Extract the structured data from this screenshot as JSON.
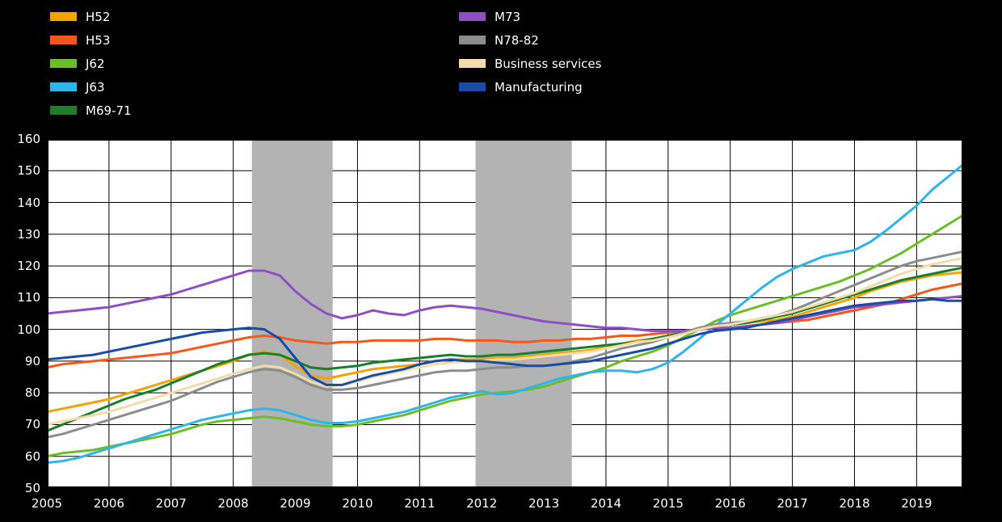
{
  "chart_data": {
    "type": "line",
    "title": "",
    "xlabel": "",
    "ylabel": "",
    "x_start": 2005,
    "x_step": 0.25,
    "x_domain": [
      2005,
      2019.75
    ],
    "ylim": [
      50,
      160
    ],
    "yticks": [
      50,
      60,
      70,
      80,
      90,
      100,
      110,
      120,
      130,
      140,
      150,
      160
    ],
    "xticks": [
      2005,
      2006,
      2007,
      2008,
      2009,
      2010,
      2011,
      2012,
      2013,
      2014,
      2015,
      2016,
      2017,
      2018,
      2019
    ],
    "grid": true,
    "legend_position": "top",
    "legend_split": 5,
    "page_bg": "#000000",
    "plot_bg": "#ffffff",
    "grid_color": "#000000",
    "band_color": "#b3b3b3",
    "bands": [
      [
        2008.3,
        2009.6
      ],
      [
        2011.9,
        2013.45
      ]
    ],
    "series": [
      {
        "name": "H52",
        "color": "#f4a300",
        "values": [
          74,
          75,
          76,
          77,
          78,
          79.5,
          81,
          82.5,
          84,
          85.5,
          87,
          88.5,
          90,
          92,
          93,
          92,
          88.5,
          85.5,
          84.5,
          85.5,
          86.5,
          87.5,
          88,
          88.5,
          89,
          90,
          90.5,
          90.5,
          90.5,
          91,
          91,
          91.5,
          92,
          92.5,
          93,
          93.5,
          94.5,
          95.5,
          96.5,
          97,
          98,
          99,
          100.5,
          101.5,
          101.5,
          102,
          102.5,
          103,
          104,
          105.5,
          107,
          108.5,
          110,
          112,
          113.5,
          115,
          116,
          117,
          117.5,
          118
        ]
      },
      {
        "name": "H53",
        "color": "#f4591c",
        "values": [
          88,
          89,
          89.5,
          90,
          90.5,
          91,
          91.5,
          92,
          92.5,
          93.5,
          94.5,
          95.5,
          96.5,
          97.5,
          98,
          97.5,
          96.5,
          96,
          95.5,
          96,
          96,
          96.5,
          96.5,
          96.5,
          96.5,
          97,
          97,
          96.5,
          96.5,
          96.5,
          96,
          96,
          96.5,
          96.5,
          97,
          97,
          97.5,
          98,
          98,
          98.5,
          99,
          99.5,
          100,
          100.5,
          100.5,
          101,
          101.5,
          102,
          102.5,
          103,
          104,
          105,
          106,
          107,
          108,
          109.5,
          111,
          112.5,
          113.5,
          114.5
        ]
      },
      {
        "name": "J62",
        "color": "#6cbe28",
        "values": [
          60,
          61,
          61.5,
          62,
          63,
          64,
          65,
          66,
          67,
          68.5,
          70,
          71,
          71.5,
          72,
          72.5,
          72,
          71,
          70,
          69.5,
          69.5,
          70,
          71,
          72,
          73,
          74.5,
          76,
          77.5,
          78.5,
          79.5,
          80,
          80.5,
          81,
          82,
          83.5,
          85,
          86.5,
          88,
          90,
          91.5,
          93,
          95,
          97.5,
          100,
          102.5,
          104.5,
          106,
          107.5,
          109,
          110.5,
          112,
          113.5,
          115,
          117,
          119,
          121.5,
          124,
          127,
          130,
          133,
          136
        ]
      },
      {
        "name": "J63",
        "color": "#2fb5e9",
        "values": [
          58,
          58.5,
          59.5,
          61,
          62.5,
          64,
          65.5,
          67,
          68.5,
          70,
          71.5,
          72.5,
          73.5,
          74.5,
          75,
          74.5,
          73,
          71.5,
          70.5,
          70.5,
          71,
          72,
          73,
          74,
          75.5,
          77,
          78.5,
          79.5,
          80.5,
          79.5,
          80,
          81.5,
          83,
          84.5,
          85.5,
          86.5,
          87,
          87,
          86.5,
          87.5,
          89.5,
          93,
          97,
          101,
          105,
          109,
          113,
          116.5,
          119,
          121,
          123,
          124,
          125,
          127.5,
          131,
          135,
          139,
          144,
          148,
          152
        ]
      },
      {
        "name": "M69-71",
        "color": "#1b7e2c",
        "values": [
          68,
          70,
          72,
          74,
          76,
          78,
          79.5,
          81,
          83,
          85,
          87,
          89,
          90.5,
          92,
          92.5,
          92,
          90,
          88,
          87.5,
          88,
          88.5,
          89.5,
          90,
          90.5,
          91,
          91.5,
          92,
          91.5,
          91.5,
          92,
          92,
          92.5,
          93,
          93.5,
          94,
          94.5,
          95,
          95.5,
          96,
          97,
          98,
          99,
          100,
          101,
          101.5,
          102,
          103,
          104,
          105,
          106.5,
          108,
          109.5,
          111,
          112.5,
          114,
          115.5,
          116.5,
          117.5,
          118.5,
          119.5
        ]
      },
      {
        "name": "M73",
        "color": "#8e4fc4",
        "values": [
          105,
          105.5,
          106,
          106.5,
          107,
          108,
          109,
          110,
          111,
          112.5,
          114,
          115.5,
          117,
          118.5,
          118.5,
          117,
          112,
          108,
          105,
          103.5,
          104.5,
          106,
          105,
          104.5,
          106,
          107,
          107.5,
          107,
          106.5,
          105.5,
          104.5,
          103.5,
          102.5,
          102,
          101.5,
          101,
          100.5,
          100.5,
          100,
          99.5,
          99.5,
          99.5,
          100,
          100.5,
          100.5,
          101,
          101.5,
          102,
          103,
          104,
          105,
          106,
          107,
          107.5,
          108,
          108.5,
          109,
          109.5,
          110,
          110.5
        ]
      },
      {
        "name": "N78-82",
        "color": "#8c8c8c",
        "values": [
          66,
          67,
          68.5,
          70,
          71.5,
          73,
          74.5,
          76,
          77.5,
          79.5,
          81.5,
          83.5,
          85,
          86.5,
          87.5,
          87,
          85,
          82.5,
          81,
          81,
          81.5,
          82.5,
          83.5,
          84.5,
          85.5,
          86.5,
          87,
          87,
          87.5,
          88,
          88,
          88.5,
          88.5,
          89,
          90,
          91,
          92.5,
          94,
          95,
          96,
          97.5,
          99,
          100.5,
          101.5,
          102,
          102.5,
          103.5,
          104.5,
          106,
          108,
          110,
          112,
          114,
          116,
          118,
          120,
          121.5,
          122.5,
          123.5,
          124.5
        ]
      },
      {
        "name": "Business services",
        "color": "#f3dcab",
        "values": [
          70,
          71,
          72,
          73,
          74,
          75.5,
          77,
          78.5,
          80,
          81.5,
          83,
          84.5,
          86,
          87.5,
          88.5,
          88,
          86,
          83.5,
          82,
          82.5,
          83.5,
          85,
          86,
          87,
          88,
          89,
          89.5,
          90,
          90,
          90.5,
          90.5,
          91,
          91.5,
          92,
          92.5,
          93,
          94,
          95,
          96,
          96.5,
          97.5,
          98.5,
          100,
          101,
          101.5,
          102.5,
          103.5,
          104.5,
          105.5,
          107,
          108.5,
          110,
          111.5,
          113.5,
          115.5,
          117.5,
          119,
          120.5,
          121.5,
          122.5
        ]
      },
      {
        "name": "Manufacturing",
        "color": "#1a4ca3",
        "values": [
          90.5,
          91,
          91.5,
          92,
          93,
          94,
          95,
          96,
          97,
          98,
          99,
          99.5,
          100,
          100.5,
          100,
          97,
          91,
          85,
          82.5,
          82.5,
          84,
          85.5,
          86.5,
          87.5,
          89,
          90,
          90.5,
          90,
          90,
          89.5,
          89,
          88.5,
          88.5,
          89,
          89.5,
          90,
          91,
          92,
          93,
          94,
          95.5,
          97,
          98.5,
          99.5,
          100,
          100.5,
          101.5,
          102.5,
          103.5,
          104.5,
          105.5,
          106.5,
          107.5,
          108,
          108.5,
          109,
          109,
          109.5,
          109,
          109
        ]
      }
    ]
  }
}
